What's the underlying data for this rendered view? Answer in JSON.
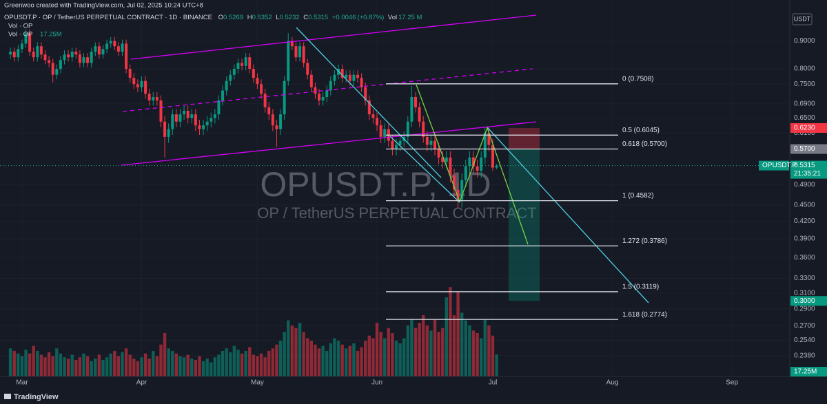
{
  "header": {
    "credit": "Greenwoo created with TradingView.com, Jul 02, 2025 10:24 UTC+8",
    "symbol": "OPUSDT.P · OP / TetherUS PERPETUAL CONTRACT · 1D · BINANCE",
    "o_label": "O",
    "h_label": "H",
    "l_label": "L",
    "c_label": "C",
    "change": "+0.0046",
    "change_pct": "(+0.87%)",
    "vol_label": "Vol",
    "vol_value": "17.25 M",
    "vol_rows": [
      "Vol · OP",
      "Vol · OP"
    ]
  },
  "chart_data": {
    "type": "candlestick",
    "x": [
      -3,
      -2,
      -1,
      0,
      1,
      2,
      3,
      4,
      5,
      6,
      7,
      8,
      9,
      10,
      11,
      12,
      13,
      14,
      15,
      16,
      17,
      18,
      19,
      20,
      21,
      22,
      23,
      24,
      25,
      26,
      27,
      28,
      29,
      30,
      31,
      32,
      33,
      34,
      35,
      36,
      37,
      38,
      39,
      40,
      41,
      42,
      43,
      44,
      45,
      46,
      47,
      48,
      49,
      50,
      51,
      52,
      53,
      54,
      55,
      56,
      57,
      58,
      59,
      60,
      61,
      62,
      63,
      64,
      65,
      66,
      67,
      68,
      69,
      70,
      71,
      72,
      73,
      74,
      75,
      76,
      77,
      78,
      79,
      80,
      81,
      82,
      83,
      84,
      85,
      86,
      87,
      88,
      89,
      90,
      91,
      92,
      93,
      94,
      95,
      96,
      97,
      98,
      99,
      100,
      101,
      102,
      103,
      104,
      105,
      106,
      107,
      108,
      109,
      110,
      111,
      112,
      113,
      114,
      115,
      116,
      117,
      118,
      119,
      120,
      121,
      122,
      123
    ],
    "open": [
      0.85,
      0.86,
      0.84,
      0.87,
      0.89,
      0.93,
      0.86,
      0.84,
      0.88,
      0.85,
      0.83,
      0.82,
      0.78,
      0.8,
      0.83,
      0.85,
      0.84,
      0.86,
      0.85,
      0.82,
      0.84,
      0.82,
      0.86,
      0.88,
      0.85,
      0.87,
      0.89,
      0.9,
      0.88,
      0.86,
      0.89,
      0.8,
      0.77,
      0.75,
      0.74,
      0.76,
      0.72,
      0.7,
      0.71,
      0.7,
      0.64,
      0.6,
      0.62,
      0.66,
      0.64,
      0.66,
      0.67,
      0.65,
      0.66,
      0.63,
      0.62,
      0.63,
      0.64,
      0.65,
      0.66,
      0.7,
      0.73,
      0.76,
      0.78,
      0.8,
      0.82,
      0.81,
      0.84,
      0.8,
      0.77,
      0.75,
      0.72,
      0.68,
      0.66,
      0.63,
      0.62,
      0.66,
      0.76,
      0.9,
      0.88,
      0.84,
      0.88,
      0.82,
      0.78,
      0.74,
      0.72,
      0.7,
      0.71,
      0.73,
      0.76,
      0.78,
      0.8,
      0.77,
      0.78,
      0.76,
      0.78,
      0.77,
      0.74,
      0.7,
      0.66,
      0.65,
      0.63,
      0.6,
      0.62,
      0.59,
      0.57,
      0.58,
      0.59,
      0.6,
      0.64,
      0.71,
      0.68,
      0.64,
      0.6,
      0.58,
      0.59,
      0.57,
      0.55,
      0.54,
      0.55,
      0.51,
      0.48,
      0.46,
      0.5,
      0.53,
      0.55,
      0.53,
      0.52,
      0.55,
      0.61,
      0.58,
      0.5269
    ],
    "high": [
      0.875,
      0.875,
      0.885,
      0.905,
      0.945,
      0.945,
      0.875,
      0.895,
      0.895,
      0.865,
      0.845,
      0.835,
      0.815,
      0.845,
      0.865,
      0.865,
      0.875,
      0.875,
      0.865,
      0.855,
      0.855,
      0.875,
      0.895,
      0.895,
      0.885,
      0.905,
      0.915,
      0.915,
      0.895,
      0.905,
      0.905,
      0.815,
      0.785,
      0.765,
      0.775,
      0.775,
      0.735,
      0.725,
      0.725,
      0.715,
      0.655,
      0.635,
      0.675,
      0.675,
      0.675,
      0.685,
      0.685,
      0.675,
      0.675,
      0.645,
      0.645,
      0.655,
      0.665,
      0.675,
      0.715,
      0.745,
      0.775,
      0.795,
      0.815,
      0.835,
      0.835,
      0.855,
      0.855,
      0.815,
      0.785,
      0.765,
      0.735,
      0.695,
      0.675,
      0.645,
      0.675,
      0.775,
      0.93,
      0.915,
      0.895,
      0.895,
      0.895,
      0.835,
      0.795,
      0.755,
      0.735,
      0.725,
      0.745,
      0.775,
      0.795,
      0.815,
      0.815,
      0.795,
      0.795,
      0.795,
      0.795,
      0.785,
      0.755,
      0.715,
      0.675,
      0.665,
      0.645,
      0.635,
      0.635,
      0.605,
      0.595,
      0.605,
      0.615,
      0.655,
      0.745,
      0.725,
      0.695,
      0.655,
      0.615,
      0.605,
      0.605,
      0.585,
      0.565,
      0.565,
      0.565,
      0.525,
      0.495,
      0.515,
      0.545,
      0.565,
      0.565,
      0.545,
      0.565,
      0.625,
      0.625,
      0.595,
      0.5352
    ],
    "low": [
      0.835,
      0.825,
      0.825,
      0.855,
      0.875,
      0.845,
      0.825,
      0.825,
      0.835,
      0.815,
      0.805,
      0.755,
      0.765,
      0.785,
      0.815,
      0.825,
      0.825,
      0.835,
      0.805,
      0.805,
      0.805,
      0.805,
      0.845,
      0.835,
      0.835,
      0.855,
      0.875,
      0.865,
      0.845,
      0.845,
      0.785,
      0.755,
      0.735,
      0.725,
      0.725,
      0.705,
      0.685,
      0.685,
      0.685,
      0.625,
      0.55,
      0.585,
      0.605,
      0.625,
      0.625,
      0.645,
      0.635,
      0.635,
      0.615,
      0.605,
      0.605,
      0.615,
      0.625,
      0.635,
      0.645,
      0.685,
      0.715,
      0.745,
      0.765,
      0.785,
      0.795,
      0.795,
      0.785,
      0.755,
      0.735,
      0.705,
      0.665,
      0.645,
      0.615,
      0.575,
      0.605,
      0.645,
      0.745,
      0.865,
      0.825,
      0.825,
      0.805,
      0.765,
      0.725,
      0.705,
      0.685,
      0.685,
      0.695,
      0.715,
      0.745,
      0.765,
      0.755,
      0.755,
      0.745,
      0.745,
      0.755,
      0.725,
      0.685,
      0.645,
      0.635,
      0.615,
      0.585,
      0.585,
      0.575,
      0.555,
      0.555,
      0.565,
      0.575,
      0.585,
      0.625,
      0.665,
      0.625,
      0.585,
      0.565,
      0.565,
      0.555,
      0.535,
      0.525,
      0.525,
      0.495,
      0.465,
      0.445,
      0.445,
      0.485,
      0.515,
      0.515,
      0.505,
      0.505,
      0.535,
      0.565,
      0.52,
      0.5232
    ],
    "close": [
      0.86,
      0.84,
      0.87,
      0.89,
      0.93,
      0.86,
      0.84,
      0.88,
      0.85,
      0.83,
      0.82,
      0.78,
      0.8,
      0.83,
      0.85,
      0.84,
      0.86,
      0.85,
      0.82,
      0.84,
      0.82,
      0.86,
      0.88,
      0.85,
      0.87,
      0.89,
      0.9,
      0.88,
      0.86,
      0.89,
      0.8,
      0.77,
      0.75,
      0.74,
      0.76,
      0.72,
      0.7,
      0.71,
      0.7,
      0.64,
      0.6,
      0.62,
      0.66,
      0.64,
      0.66,
      0.67,
      0.65,
      0.66,
      0.63,
      0.62,
      0.63,
      0.64,
      0.65,
      0.66,
      0.7,
      0.73,
      0.76,
      0.78,
      0.8,
      0.82,
      0.81,
      0.84,
      0.8,
      0.77,
      0.75,
      0.72,
      0.68,
      0.66,
      0.63,
      0.62,
      0.66,
      0.76,
      0.9,
      0.88,
      0.84,
      0.88,
      0.82,
      0.78,
      0.74,
      0.72,
      0.7,
      0.71,
      0.73,
      0.76,
      0.78,
      0.8,
      0.77,
      0.78,
      0.76,
      0.78,
      0.77,
      0.74,
      0.7,
      0.66,
      0.65,
      0.63,
      0.6,
      0.62,
      0.59,
      0.57,
      0.58,
      0.59,
      0.6,
      0.64,
      0.71,
      0.68,
      0.64,
      0.6,
      0.58,
      0.59,
      0.57,
      0.55,
      0.54,
      0.55,
      0.51,
      0.48,
      0.46,
      0.5,
      0.53,
      0.55,
      0.53,
      0.52,
      0.55,
      0.61,
      0.58,
      0.5269,
      0.5315
    ],
    "volume": [
      22,
      20,
      18,
      16,
      21,
      18,
      24,
      20,
      17,
      15,
      19,
      16,
      22,
      18,
      15,
      14,
      17,
      13,
      15,
      18,
      16,
      12,
      14,
      17,
      13,
      15,
      18,
      20,
      16,
      19,
      22,
      17,
      14,
      12,
      15,
      18,
      14,
      20,
      16,
      25,
      34,
      22,
      20,
      18,
      16,
      15,
      17,
      14,
      13,
      16,
      12,
      14,
      11,
      15,
      17,
      20,
      22,
      19,
      24,
      21,
      18,
      20,
      23,
      17,
      16,
      18,
      15,
      20,
      22,
      25,
      28,
      35,
      44,
      40,
      38,
      42,
      35,
      30,
      28,
      25,
      22,
      24,
      20,
      26,
      30,
      28,
      25,
      22,
      24,
      26,
      20,
      23,
      28,
      32,
      30,
      42,
      35,
      30,
      38,
      34,
      28,
      26,
      30,
      40,
      45,
      38,
      42,
      48,
      40,
      36,
      45,
      35,
      38,
      62,
      70,
      48,
      66,
      50,
      44,
      40,
      36,
      34,
      30,
      45,
      40,
      32,
      17.25
    ],
    "up_color": "#089981",
    "down_color": "#f23645",
    "log_scale": true,
    "grid": true,
    "xlim": [
      -5.7,
      198.8
    ],
    "xticks": [
      {
        "value": 0,
        "label": "Mar"
      },
      {
        "value": 31,
        "label": "Apr"
      },
      {
        "value": 61,
        "label": "May"
      },
      {
        "value": 92,
        "label": "Jun"
      },
      {
        "value": 122,
        "label": "Jul"
      },
      {
        "value": 153,
        "label": "Aug"
      },
      {
        "value": 184,
        "label": "Sep"
      }
    ],
    "ylim": [
      0.218,
      1.07
    ],
    "yticks": [
      {
        "value": 0.9,
        "label": "0.9000"
      },
      {
        "value": 0.8,
        "label": "0.8000"
      },
      {
        "value": 0.75,
        "label": "0.7500"
      },
      {
        "value": 0.69,
        "label": "0.6900"
      },
      {
        "value": 0.65,
        "label": "0.6500"
      },
      {
        "value": 0.61,
        "label": "0.6100"
      },
      {
        "value": 0.49,
        "label": "0.4900"
      },
      {
        "value": 0.45,
        "label": "0.4500"
      },
      {
        "value": 0.42,
        "label": "0.4200"
      },
      {
        "value": 0.39,
        "label": "0.3900"
      },
      {
        "value": 0.36,
        "label": "0.3600"
      },
      {
        "value": 0.33,
        "label": "0.3300"
      },
      {
        "value": 0.31,
        "label": "0.3100"
      },
      {
        "value": 0.29,
        "label": "0.2900"
      },
      {
        "value": 0.27,
        "label": "0.2700"
      },
      {
        "value": 0.254,
        "label": "0.2540"
      },
      {
        "value": 0.238,
        "label": "0.2380"
      }
    ],
    "vlim": [
      0,
      295
    ],
    "watermark": [
      "OPUSDT.P, 1D",
      "OP / TetherUS PERPETUAL CONTRACT"
    ],
    "currency": "USDT",
    "symbol_tag": "OPUSDT.P",
    "countdown": "21:35:21",
    "volume_tag": "17.25M",
    "fib_levels": [
      {
        "value": 0.7508,
        "label": "0 (0.7508)"
      },
      {
        "value": 0.6045,
        "label": "0.5 (0.6045)"
      },
      {
        "value": 0.57,
        "label": "0.618 (0.5700)"
      },
      {
        "value": 0.4582,
        "label": "1 (0.4582)"
      },
      {
        "value": 0.3786,
        "label": "1.272 (0.3786)"
      },
      {
        "value": 0.3119,
        "label": "1.5 (0.3119)"
      },
      {
        "value": 0.2774,
        "label": "1.618 (0.2774)"
      }
    ],
    "position": {
      "stop": {
        "value": 0.623,
        "label": "0.6230"
      },
      "entry": {
        "value": 0.57,
        "label": "0.5700"
      },
      "target": {
        "value": 0.3,
        "label": "0.3000"
      }
    }
  },
  "footer": {
    "brand": "TradingView"
  }
}
